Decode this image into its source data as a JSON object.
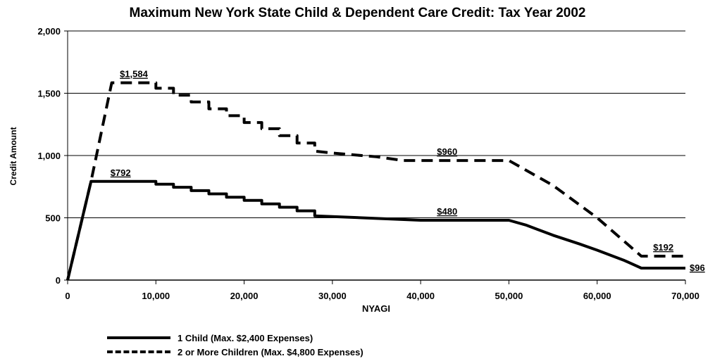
{
  "chart_data": {
    "type": "line",
    "title": "Maximum New York State Child & Dependent Care Credit: Tax Year 2002",
    "xlabel": "NYAGI",
    "ylabel": "Credit Amount",
    "xlim": [
      0,
      70000
    ],
    "ylim": [
      0,
      2000
    ],
    "x_ticks": [
      0,
      10000,
      20000,
      30000,
      40000,
      50000,
      60000,
      70000
    ],
    "x_tick_labels": [
      "0",
      "10,000",
      "20,000",
      "30,000",
      "40,000",
      "50,000",
      "60,000",
      "70,000"
    ],
    "y_ticks": [
      0,
      500,
      1000,
      1500,
      2000
    ],
    "y_tick_labels": [
      "0",
      "500",
      "1,000",
      "1,500",
      "2,000"
    ],
    "grid": "horizontal",
    "legend_position": "bottom-left",
    "series": [
      {
        "name": "1 Child (Max. $2,400 Expenses)",
        "style": "solid",
        "points": [
          [
            0,
            0
          ],
          [
            2650,
            792
          ],
          [
            10000,
            792
          ],
          [
            10000,
            770
          ],
          [
            12000,
            770
          ],
          [
            12000,
            745
          ],
          [
            14000,
            745
          ],
          [
            14000,
            718
          ],
          [
            16000,
            718
          ],
          [
            16000,
            692
          ],
          [
            18000,
            692
          ],
          [
            18000,
            665
          ],
          [
            20000,
            665
          ],
          [
            20000,
            640
          ],
          [
            22000,
            640
          ],
          [
            22000,
            612
          ],
          [
            24000,
            612
          ],
          [
            24000,
            585
          ],
          [
            26000,
            585
          ],
          [
            26000,
            556
          ],
          [
            28000,
            556
          ],
          [
            28000,
            515
          ],
          [
            30000,
            510
          ],
          [
            35000,
            495
          ],
          [
            40000,
            480
          ],
          [
            50000,
            480
          ],
          [
            52000,
            440
          ],
          [
            55000,
            360
          ],
          [
            58000,
            290
          ],
          [
            60000,
            240
          ],
          [
            63000,
            160
          ],
          [
            65000,
            96
          ],
          [
            70000,
            96
          ]
        ]
      },
      {
        "name": "2 or More Children (Max. $4,800 Expenses)",
        "style": "dashed",
        "points": [
          [
            0,
            0
          ],
          [
            2650,
            792
          ],
          [
            5000,
            1584
          ],
          [
            10000,
            1584
          ],
          [
            10000,
            1540
          ],
          [
            12000,
            1540
          ],
          [
            12000,
            1485
          ],
          [
            14000,
            1485
          ],
          [
            14000,
            1430
          ],
          [
            16000,
            1430
          ],
          [
            16000,
            1375
          ],
          [
            18000,
            1375
          ],
          [
            18000,
            1320
          ],
          [
            20000,
            1320
          ],
          [
            20000,
            1265
          ],
          [
            22000,
            1265
          ],
          [
            22000,
            1215
          ],
          [
            24000,
            1215
          ],
          [
            24000,
            1160
          ],
          [
            26000,
            1160
          ],
          [
            26000,
            1100
          ],
          [
            28000,
            1100
          ],
          [
            28000,
            1035
          ],
          [
            30000,
            1020
          ],
          [
            35000,
            990
          ],
          [
            38000,
            960
          ],
          [
            50000,
            960
          ],
          [
            55000,
            760
          ],
          [
            60000,
            500
          ],
          [
            65000,
            192
          ],
          [
            70000,
            192
          ]
        ]
      }
    ],
    "annotations": [
      {
        "text": "$1,584",
        "x": 7500,
        "y": 1584
      },
      {
        "text": "$792",
        "x": 6000,
        "y": 792
      },
      {
        "text": "$960",
        "x": 43000,
        "y": 960
      },
      {
        "text": "$480",
        "x": 43000,
        "y": 480
      },
      {
        "text": "$192",
        "x": 67500,
        "y": 192
      },
      {
        "text": "$96",
        "x": 70000,
        "y": 96
      }
    ]
  }
}
